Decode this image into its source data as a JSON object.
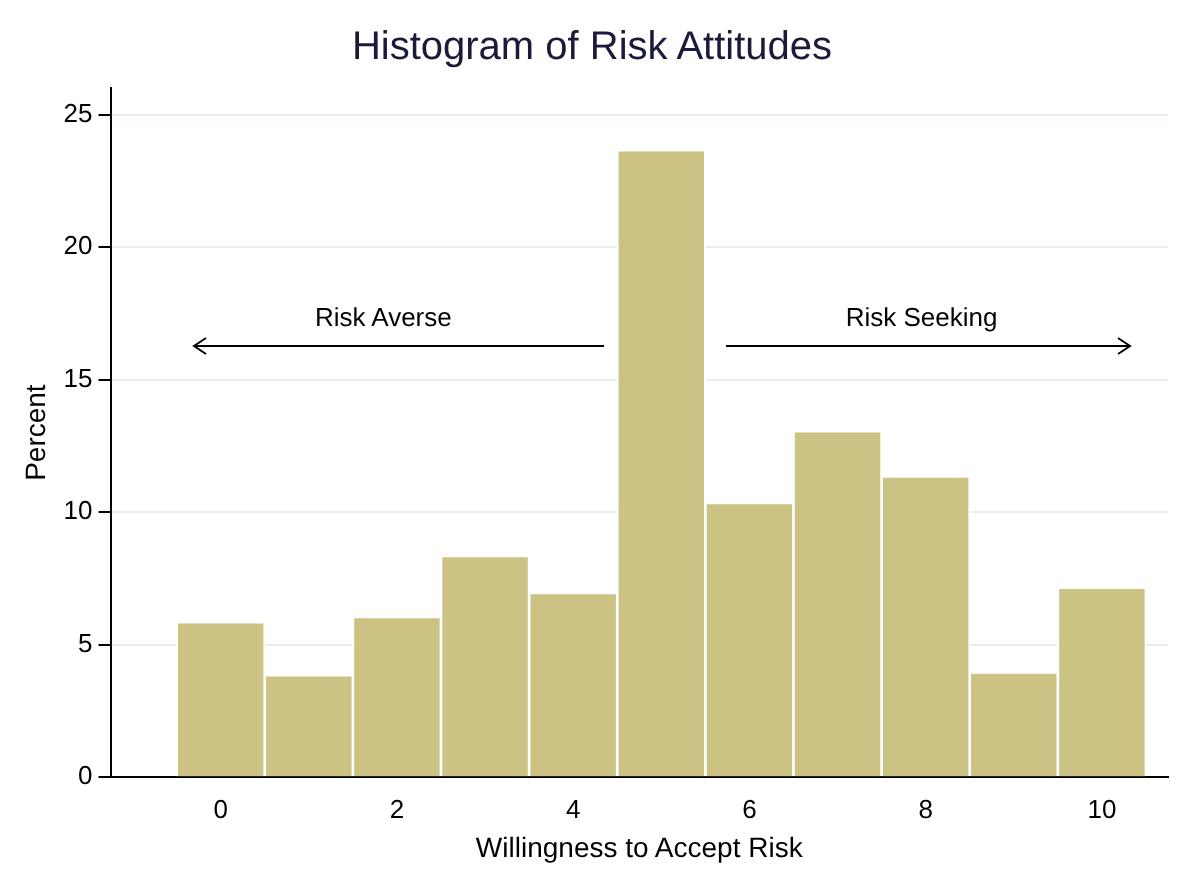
{
  "chart_data": {
    "type": "histogram",
    "title": "Histogram of Risk Attitudes",
    "xlabel": "Willingness to Accept Risk",
    "ylabel": "Percent",
    "bins": [
      -0.5,
      0.5,
      1.5,
      2.5,
      3.5,
      4.5,
      5.5,
      6.5,
      7.5,
      8.5,
      9.5,
      10.5
    ],
    "values": [
      5.8,
      3.8,
      6.0,
      8.3,
      6.9,
      23.6,
      10.3,
      13.0,
      11.3,
      3.9,
      7.1
    ],
    "color": "#cbc283",
    "xlim": [
      -1.25,
      10.75
    ],
    "xticks": [
      0,
      2,
      4,
      6,
      8,
      10
    ],
    "ylim": [
      0,
      26
    ],
    "yticks": [
      0,
      5,
      10,
      15,
      20,
      25
    ],
    "grid": "y",
    "legend": false,
    "annotations": [
      "Risk Averse",
      "Risk Seeking"
    ]
  }
}
